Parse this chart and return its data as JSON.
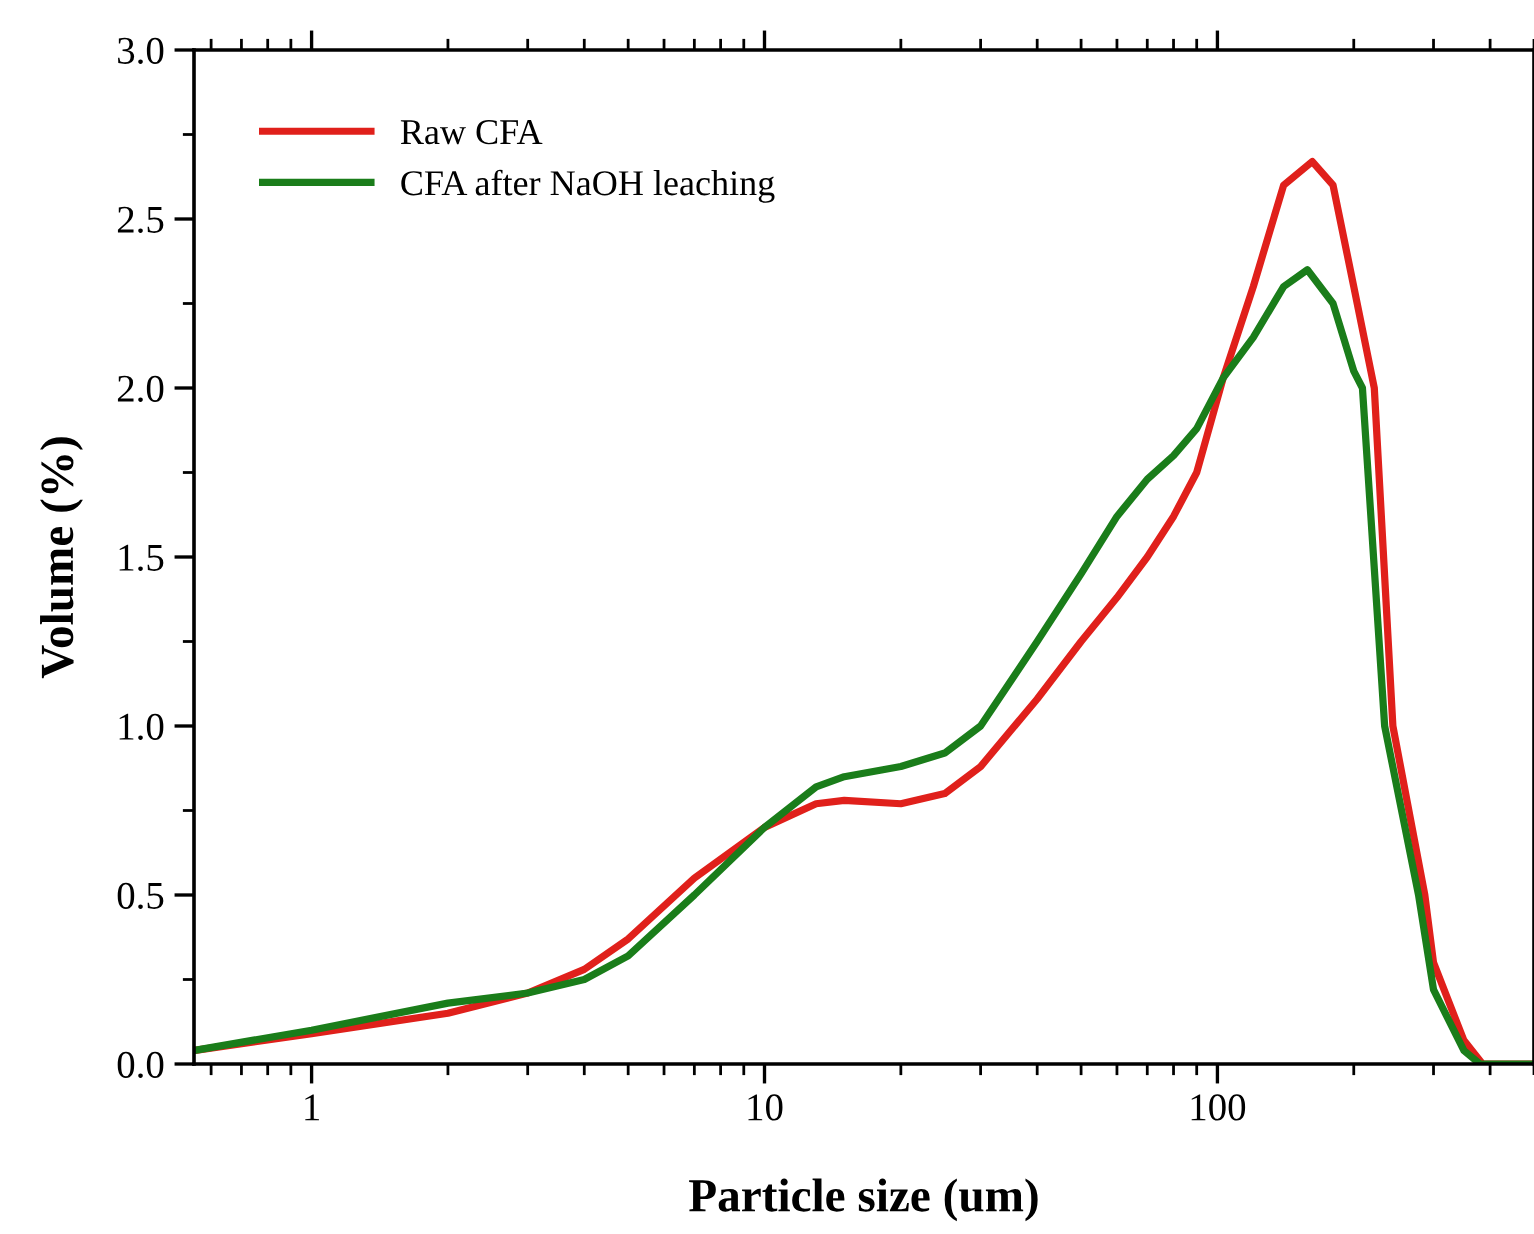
{
  "chart_data": {
    "type": "line",
    "xlabel": "Particle size (um)",
    "ylabel": "Volume (%)",
    "log": "x",
    "xlim": [
      0.55,
      500
    ],
    "xticks": [
      1,
      10,
      100
    ],
    "ylim": [
      0,
      3.0
    ],
    "yticks": [
      {
        "value": 0,
        "label": "0.0"
      },
      0.5,
      {
        "value": 1,
        "label": "1.0"
      },
      1.5,
      {
        "value": 2,
        "label": "2.0"
      },
      2.5,
      {
        "value": 3,
        "label": "3.0"
      }
    ],
    "grid": false,
    "legend": "top left",
    "series": [
      {
        "name": "Raw CFA",
        "color": "#e0201b",
        "x": [
          0.55,
          1,
          2,
          3,
          4,
          5,
          7,
          10,
          13,
          15,
          20,
          25,
          30,
          40,
          50,
          60,
          70,
          80,
          90,
          103,
          120,
          140,
          162,
          180,
          200,
          222,
          244,
          287,
          300,
          350,
          385,
          400,
          500
        ],
        "values": [
          0.04,
          0.09,
          0.15,
          0.21,
          0.28,
          0.37,
          0.55,
          0.7,
          0.77,
          0.78,
          0.77,
          0.8,
          0.88,
          1.08,
          1.25,
          1.38,
          1.5,
          1.62,
          1.75,
          2.03,
          2.3,
          2.6,
          2.67,
          2.6,
          2.3,
          2.0,
          1.0,
          0.5,
          0.3,
          0.07,
          0,
          0,
          0
        ]
      },
      {
        "name": "CFA after NaOH leaching",
        "color": "#1a7d1a",
        "x": [
          0.55,
          1,
          2,
          3,
          4,
          5,
          7,
          10,
          13,
          15,
          20,
          25,
          30,
          40,
          50,
          60,
          70,
          80,
          90,
          103,
          120,
          140,
          158,
          180,
          200,
          209,
          234,
          278,
          300,
          350,
          380,
          400,
          500
        ],
        "values": [
          0.04,
          0.1,
          0.18,
          0.21,
          0.25,
          0.32,
          0.5,
          0.7,
          0.82,
          0.85,
          0.88,
          0.92,
          1.0,
          1.25,
          1.45,
          1.62,
          1.73,
          1.8,
          1.88,
          2.03,
          2.15,
          2.3,
          2.35,
          2.25,
          2.05,
          2.0,
          1.0,
          0.5,
          0.22,
          0.04,
          0,
          0,
          0
        ]
      }
    ]
  }
}
